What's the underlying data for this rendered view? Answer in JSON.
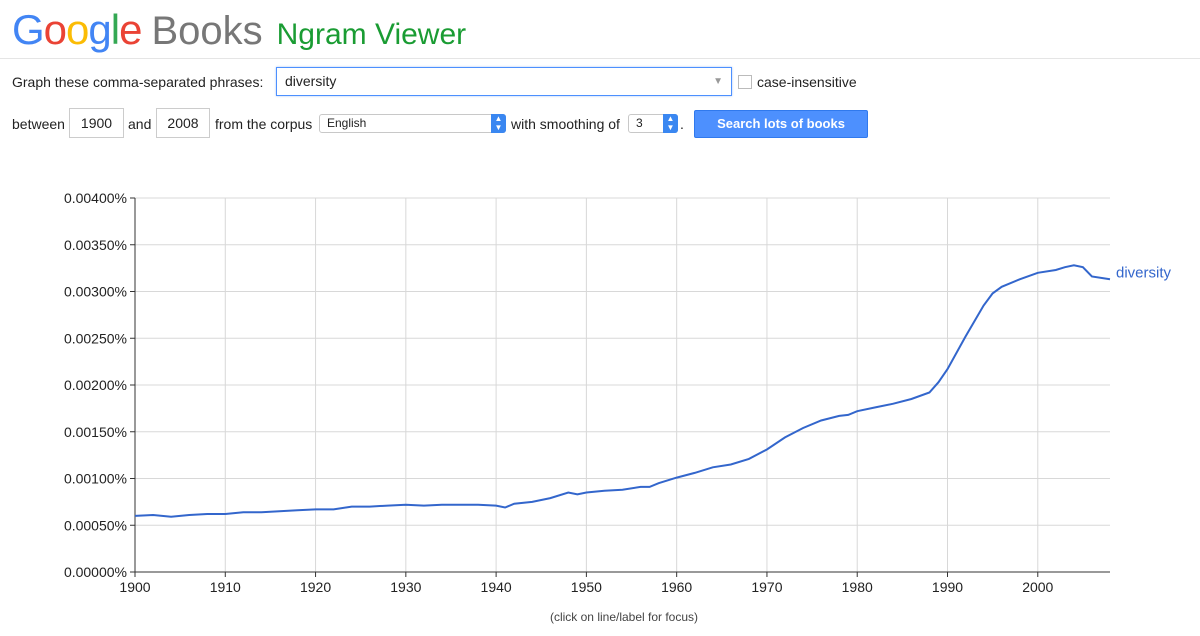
{
  "header": {
    "logo_google": "Google",
    "logo_books": "Books",
    "app_title": "Ngram Viewer",
    "google_colors": [
      "#4285f4",
      "#ea4335",
      "#fbbc05",
      "#4285f4",
      "#34a853",
      "#ea4335"
    ]
  },
  "query": {
    "phrases_label": "Graph these comma-separated phrases:",
    "phrases_value": "diversity",
    "case_insensitive_label": "case-insensitive",
    "case_insensitive_checked": false,
    "between_label": "between",
    "year_start": "1900",
    "and_label": "and",
    "year_end": "2008",
    "corpus_label": "from the corpus",
    "corpus_value": "English",
    "smoothing_label": "with smoothing of",
    "smoothing_value": "3",
    "period": ".",
    "search_button": "Search lots of books"
  },
  "chart_data": {
    "type": "line",
    "xlim": [
      1900,
      2008
    ],
    "ylim": [
      0,
      0.004
    ],
    "y_ticks": [
      "0.00000%",
      "0.00050%",
      "0.00100%",
      "0.00150%",
      "0.00200%",
      "0.00250%",
      "0.00300%",
      "0.00350%",
      "0.00400%"
    ],
    "x_ticks": [
      "1900",
      "1910",
      "1920",
      "1930",
      "1940",
      "1950",
      "1960",
      "1970",
      "1980",
      "1990",
      "2000"
    ],
    "grid": true,
    "series": [
      {
        "name": "diversity",
        "color": "#3366cc",
        "x": [
          1900,
          1902,
          1904,
          1906,
          1908,
          1910,
          1912,
          1914,
          1916,
          1918,
          1920,
          1922,
          1924,
          1926,
          1928,
          1930,
          1932,
          1934,
          1936,
          1938,
          1940,
          1941,
          1942,
          1944,
          1946,
          1948,
          1949,
          1950,
          1952,
          1954,
          1956,
          1957,
          1958,
          1960,
          1962,
          1964,
          1966,
          1968,
          1970,
          1972,
          1974,
          1976,
          1978,
          1979,
          1980,
          1982,
          1984,
          1986,
          1988,
          1989,
          1990,
          1992,
          1994,
          1995,
          1996,
          1998,
          2000,
          2002,
          2003,
          2004,
          2005,
          2006,
          2008
        ],
        "y": [
          0.0006,
          0.00061,
          0.00059,
          0.00061,
          0.00062,
          0.00062,
          0.00064,
          0.00064,
          0.00065,
          0.00066,
          0.00067,
          0.00067,
          0.0007,
          0.0007,
          0.00071,
          0.00072,
          0.00071,
          0.00072,
          0.00072,
          0.00072,
          0.00071,
          0.00069,
          0.00073,
          0.00075,
          0.00079,
          0.00085,
          0.00083,
          0.00085,
          0.00087,
          0.00088,
          0.00091,
          0.00091,
          0.00095,
          0.00101,
          0.00106,
          0.00112,
          0.00115,
          0.00121,
          0.00131,
          0.00144,
          0.00154,
          0.00162,
          0.00167,
          0.00168,
          0.00172,
          0.00176,
          0.0018,
          0.00185,
          0.00192,
          0.00203,
          0.00217,
          0.00252,
          0.00285,
          0.00298,
          0.00305,
          0.00313,
          0.0032,
          0.00323,
          0.00326,
          0.00328,
          0.00326,
          0.00316,
          0.00313
        ]
      }
    ]
  },
  "footnote": "(click on line/label for focus)"
}
